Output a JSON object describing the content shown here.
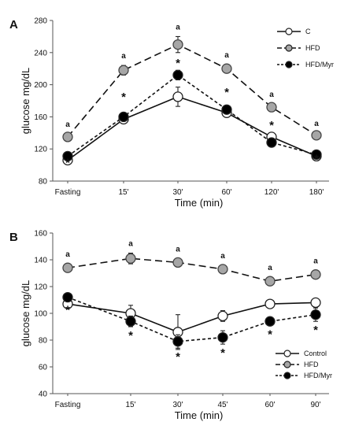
{
  "chart_data": [
    {
      "panel": "A",
      "type": "line",
      "categories": [
        "Fasting",
        "15'",
        "30'",
        "60'",
        "120'",
        "180'"
      ],
      "xlabel": "Time (min)",
      "ylabel": "glucose mg/dL",
      "ylim": [
        80,
        280
      ],
      "yticks": [
        80,
        120,
        160,
        200,
        240,
        280
      ],
      "grid": false,
      "legend": "top-right",
      "series": [
        {
          "name": "C",
          "values": [
            106,
            157,
            185,
            165,
            135,
            111
          ],
          "errors": [
            3,
            5,
            12,
            4,
            5,
            3
          ],
          "marker": "open",
          "color": "#ffffff",
          "dash": "solid"
        },
        {
          "name": "HFD",
          "values": [
            135,
            218,
            250,
            220,
            172,
            137
          ],
          "errors": [
            4,
            6,
            10,
            5,
            4,
            3
          ],
          "marker": "gray",
          "color": "#a6a6a6",
          "dash": "long"
        },
        {
          "name": "HFD/Myr",
          "values": [
            111,
            160,
            212,
            169,
            128,
            113
          ],
          "errors": [
            4,
            5,
            6,
            5,
            4,
            3
          ],
          "marker": "filled",
          "color": "#000000",
          "dash": "short"
        }
      ],
      "a_marks": [
        0,
        1,
        2,
        3,
        4,
        5
      ],
      "star_marks": [
        0,
        1,
        2,
        3,
        4,
        5
      ]
    },
    {
      "panel": "B",
      "type": "line",
      "categories": [
        "Fasting",
        "15'",
        "30'",
        "45'",
        "60'",
        "90'"
      ],
      "xlabel": "Time (min)",
      "ylabel": "glucose mg/dL",
      "ylim": [
        40,
        160
      ],
      "yticks": [
        40,
        60,
        80,
        100,
        120,
        140,
        160
      ],
      "grid": false,
      "legend": "bottom-right",
      "series": [
        {
          "name": "Control",
          "values": [
            107,
            100,
            86,
            98,
            107,
            108
          ],
          "errors": [
            3,
            6,
            13,
            4,
            3,
            2
          ],
          "marker": "open",
          "color": "#ffffff",
          "dash": "solid"
        },
        {
          "name": "HFD",
          "values": [
            134,
            141,
            138,
            133,
            124,
            129
          ],
          "errors": [
            3,
            4,
            3,
            3,
            3,
            3
          ],
          "marker": "gray",
          "color": "#a6a6a6",
          "dash": "long"
        },
        {
          "name": "HFD/Myr",
          "values": [
            112,
            94,
            79,
            82,
            94,
            99
          ],
          "errors": [
            3,
            4,
            5,
            5,
            3,
            5
          ],
          "marker": "filled",
          "color": "#000000",
          "dash": "short"
        }
      ],
      "a_marks": [
        0,
        1,
        2,
        3,
        4,
        5
      ],
      "star_marks": [
        0,
        1,
        2,
        3,
        4,
        5
      ]
    }
  ],
  "annotation_a": "a",
  "annotation_star": "*"
}
